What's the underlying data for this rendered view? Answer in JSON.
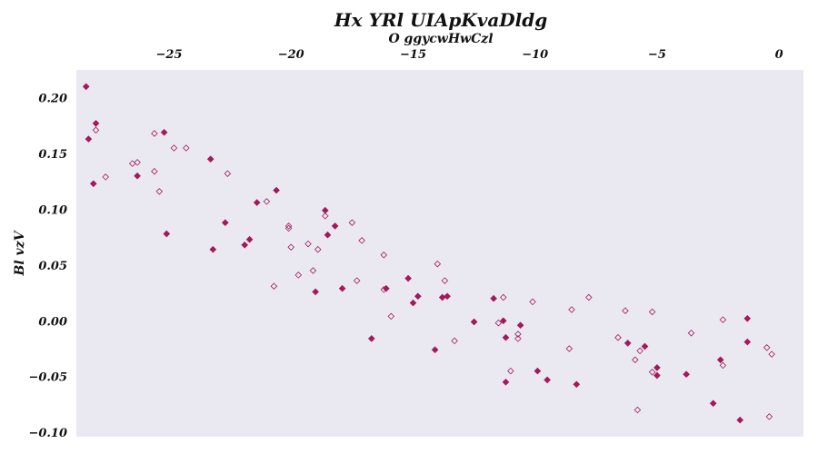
{
  "chart_data": {
    "type": "scatter",
    "title": "Hx YRl  UIApKvaDldg",
    "xlabel": "O ggycwHwCzl",
    "ylabel": "Bl vzV",
    "xaxis_position": "top",
    "xlim": [
      -28.8,
      1.0
    ],
    "ylim": [
      -0.104,
      0.225
    ],
    "x_ticks": [
      -25,
      -20,
      -15,
      -10,
      -5,
      0
    ],
    "y_ticks": [
      -0.1,
      -0.05,
      0.0,
      0.05,
      0.1,
      0.15,
      0.2
    ],
    "grid": false,
    "background_color": "#eae9f2",
    "marker_color": "#a3195b",
    "series": [
      {
        "marker": "filled-diamond",
        "points": [
          [
            -28.4,
            0.21
          ],
          [
            -28.3,
            0.163
          ],
          [
            -28.0,
            0.177
          ],
          [
            -28.1,
            0.123
          ],
          [
            -26.3,
            0.13
          ],
          [
            -25.2,
            0.169
          ],
          [
            -25.1,
            0.078
          ],
          [
            -23.3,
            0.145
          ],
          [
            -23.2,
            0.064
          ],
          [
            -22.7,
            0.088
          ],
          [
            -21.9,
            0.068
          ],
          [
            -21.7,
            0.073
          ],
          [
            -21.4,
            0.106
          ],
          [
            -20.6,
            0.117
          ],
          [
            -19.0,
            0.026
          ],
          [
            -18.6,
            0.099
          ],
          [
            -18.5,
            0.077
          ],
          [
            -18.2,
            0.085
          ],
          [
            -17.9,
            0.029
          ],
          [
            -16.7,
            -0.016
          ],
          [
            -16.1,
            0.029
          ],
          [
            -15.2,
            0.038
          ],
          [
            -15.0,
            0.016
          ],
          [
            -14.8,
            0.022
          ],
          [
            -14.1,
            -0.026
          ],
          [
            -13.8,
            0.021
          ],
          [
            -13.6,
            0.022
          ],
          [
            -12.5,
            -0.001
          ],
          [
            -11.7,
            0.02
          ],
          [
            -11.3,
            0.0
          ],
          [
            -11.2,
            -0.015
          ],
          [
            -11.2,
            -0.055
          ],
          [
            -10.6,
            -0.004
          ],
          [
            -9.9,
            -0.045
          ],
          [
            -9.5,
            -0.053
          ],
          [
            -8.3,
            -0.057
          ],
          [
            -6.2,
            -0.02
          ],
          [
            -5.5,
            -0.023
          ],
          [
            -5.0,
            -0.042
          ],
          [
            -5.0,
            -0.049
          ],
          [
            -3.8,
            -0.048
          ],
          [
            -2.7,
            -0.074
          ],
          [
            -2.4,
            -0.035
          ],
          [
            -1.6,
            -0.089
          ],
          [
            -1.3,
            0.002
          ],
          [
            -1.3,
            -0.019
          ]
        ]
      },
      {
        "marker": "hollow-diamond",
        "points": [
          [
            -28.0,
            0.171
          ],
          [
            -27.6,
            0.129
          ],
          [
            -26.5,
            0.141
          ],
          [
            -26.3,
            0.142
          ],
          [
            -25.6,
            0.134
          ],
          [
            -25.6,
            0.168
          ],
          [
            -25.4,
            0.116
          ],
          [
            -24.8,
            0.155
          ],
          [
            -24.3,
            0.155
          ],
          [
            -22.6,
            0.132
          ],
          [
            -21.0,
            0.107
          ],
          [
            -20.7,
            0.031
          ],
          [
            -20.1,
            0.083
          ],
          [
            -20.1,
            0.085
          ],
          [
            -20.0,
            0.066
          ],
          [
            -19.7,
            0.041
          ],
          [
            -19.3,
            0.069
          ],
          [
            -19.1,
            0.045
          ],
          [
            -18.9,
            0.064
          ],
          [
            -18.6,
            0.094
          ],
          [
            -17.5,
            0.088
          ],
          [
            -17.3,
            0.036
          ],
          [
            -17.1,
            0.072
          ],
          [
            -16.2,
            0.059
          ],
          [
            -16.2,
            0.028
          ],
          [
            -15.9,
            0.004
          ],
          [
            -14.0,
            0.051
          ],
          [
            -13.7,
            0.036
          ],
          [
            -13.3,
            -0.018
          ],
          [
            -11.5,
            -0.002
          ],
          [
            -11.3,
            0.021
          ],
          [
            -11.0,
            -0.045
          ],
          [
            -10.7,
            -0.012
          ],
          [
            -10.7,
            -0.016
          ],
          [
            -10.1,
            0.017
          ],
          [
            -8.6,
            -0.025
          ],
          [
            -8.5,
            0.01
          ],
          [
            -7.8,
            0.021
          ],
          [
            -6.6,
            -0.015
          ],
          [
            -6.3,
            0.009
          ],
          [
            -5.9,
            -0.035
          ],
          [
            -5.8,
            -0.08
          ],
          [
            -5.7,
            -0.027
          ],
          [
            -5.2,
            -0.046
          ],
          [
            -5.2,
            0.008
          ],
          [
            -3.6,
            -0.011
          ],
          [
            -2.3,
            0.001
          ],
          [
            -2.3,
            -0.04
          ],
          [
            -0.5,
            -0.024
          ],
          [
            -0.4,
            -0.086
          ],
          [
            -0.3,
            -0.03
          ]
        ]
      }
    ]
  }
}
